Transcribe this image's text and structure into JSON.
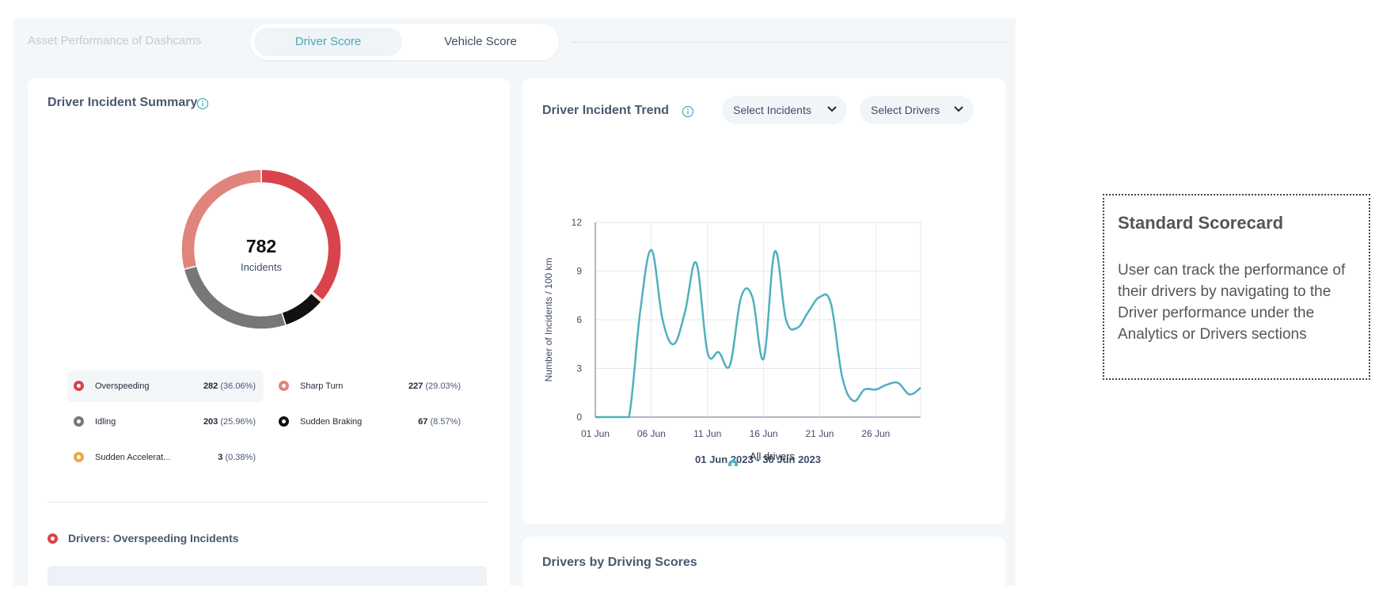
{
  "header": {
    "title": "Asset Performance of Dashcams",
    "tabs": [
      {
        "label": "Driver Score",
        "active": true
      },
      {
        "label": "Vehicle Score",
        "active": false
      }
    ]
  },
  "incident_summary": {
    "title": "Driver Incident Summary",
    "total": "782",
    "total_label": "Incidents",
    "legend": [
      {
        "name": "Overspeeding",
        "count": "282",
        "pct": "(36.06%)",
        "color": "#d9434b"
      },
      {
        "name": "Sharp Turn",
        "count": "227",
        "pct": "(29.03%)",
        "color": "#e0847c"
      },
      {
        "name": "Idling",
        "count": "203",
        "pct": "(25.96%)",
        "color": "#777777"
      },
      {
        "name": "Sudden Braking",
        "count": "67",
        "pct": "(8.57%)",
        "color": "#111111"
      },
      {
        "name": "Sudden Accelerat...",
        "count": "3",
        "pct": "(0.38%)",
        "color": "#f0a74a"
      }
    ],
    "drivers_title": "Drivers: Overspeeding Incidents"
  },
  "trend": {
    "title": "Driver Incident Trend",
    "select_incidents": "Select Incidents",
    "select_drivers": "Select Drivers",
    "date_range": "01 Jun 2023 - 30 Jun 2023"
  },
  "scores": {
    "title": "Drivers by Driving Scores"
  },
  "callout": {
    "title": "Standard Scorecard",
    "text": "User can track the performance of their drivers by navigating to the Driver performance under the Analytics or Drivers sections"
  },
  "colors": {
    "accent": "#4aa9b8",
    "line": "#4fb0bf"
  },
  "chart_data": [
    {
      "type": "pie",
      "title": "",
      "center_value": "782",
      "center_label": "Incidents",
      "slices": [
        {
          "label": "Overspeeding",
          "value": 282,
          "color": "#d9434b"
        },
        {
          "label": "Sudden Accelerat...",
          "value": 3,
          "color": "#f0a74a"
        },
        {
          "label": "Sudden Braking",
          "value": 67,
          "color": "#111111"
        },
        {
          "label": "Idling",
          "value": 203,
          "color": "#777777"
        },
        {
          "label": "Sharp Turn",
          "value": 227,
          "color": "#e0847c"
        }
      ]
    },
    {
      "type": "line",
      "title": "",
      "xlabel": "01 Jun 2023 - 30 Jun 2023",
      "ylabel": "Number of Incidents / 100 km",
      "xlim": [
        1,
        30
      ],
      "ylim": [
        0,
        12
      ],
      "x_ticks": [
        1,
        6,
        11,
        16,
        21,
        26
      ],
      "x_tick_labels": [
        "01 Jun",
        "06 Jun",
        "11 Jun",
        "16 Jun",
        "21 Jun",
        "26 Jun"
      ],
      "y_ticks": [
        0,
        3,
        6,
        9,
        12
      ],
      "y_tick_labels": [
        "0",
        "3",
        "6",
        "9",
        "12"
      ],
      "grid": true,
      "legend_position": "bottom-center",
      "series": [
        {
          "name": "All drivers",
          "color": "#4fb0bf",
          "x": [
            1,
            2,
            3,
            4,
            5,
            6,
            7,
            8,
            9,
            10,
            11,
            12,
            13,
            14,
            15,
            16,
            17,
            18,
            19,
            20,
            21,
            22,
            23,
            24,
            25,
            26,
            27,
            28,
            29,
            30
          ],
          "y": [
            0,
            0,
            0,
            0,
            6.5,
            10.3,
            6.0,
            4.5,
            6.5,
            9.5,
            4.0,
            4.0,
            3.2,
            7.4,
            7.4,
            3.6,
            10.2,
            6.0,
            5.5,
            6.5,
            7.4,
            7.0,
            2.5,
            1.0,
            1.7,
            1.7,
            2.0,
            2.1,
            1.4,
            1.8
          ]
        }
      ]
    }
  ]
}
